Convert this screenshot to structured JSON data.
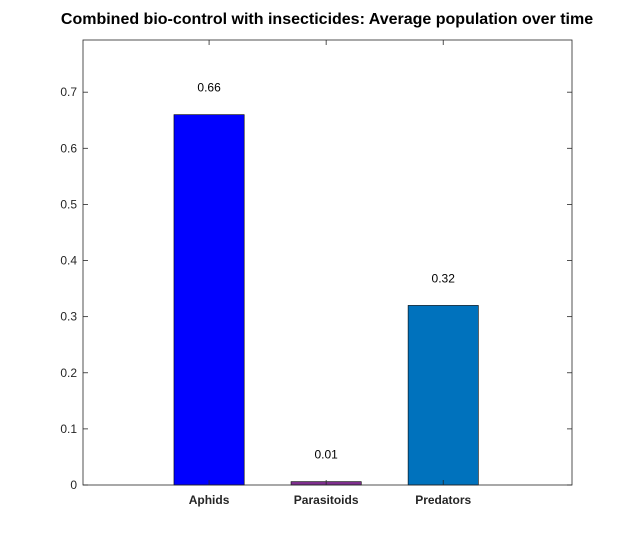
{
  "chart_data": {
    "type": "bar",
    "title": "Combined bio-control with insecticides: Average population over time",
    "xlabel": "",
    "ylabel": "",
    "categories": [
      "Aphids",
      "Parasitoids",
      "Predators"
    ],
    "values": [
      0.66,
      0.006,
      0.32
    ],
    "data_labels": [
      "0.66",
      "0.01",
      "0.32"
    ],
    "colors": [
      "#0000FF",
      "#7E2F8E",
      "#0072BD"
    ],
    "ylim": [
      0,
      0.793
    ],
    "yticks": [
      0,
      0.1,
      0.2,
      0.3,
      0.4,
      0.5,
      0.6,
      0.7
    ],
    "ytick_labels": [
      "0",
      "0.1",
      "0.2",
      "0.3",
      "0.4",
      "0.5",
      "0.6",
      "0.7"
    ],
    "grid": false,
    "legend": "none"
  }
}
